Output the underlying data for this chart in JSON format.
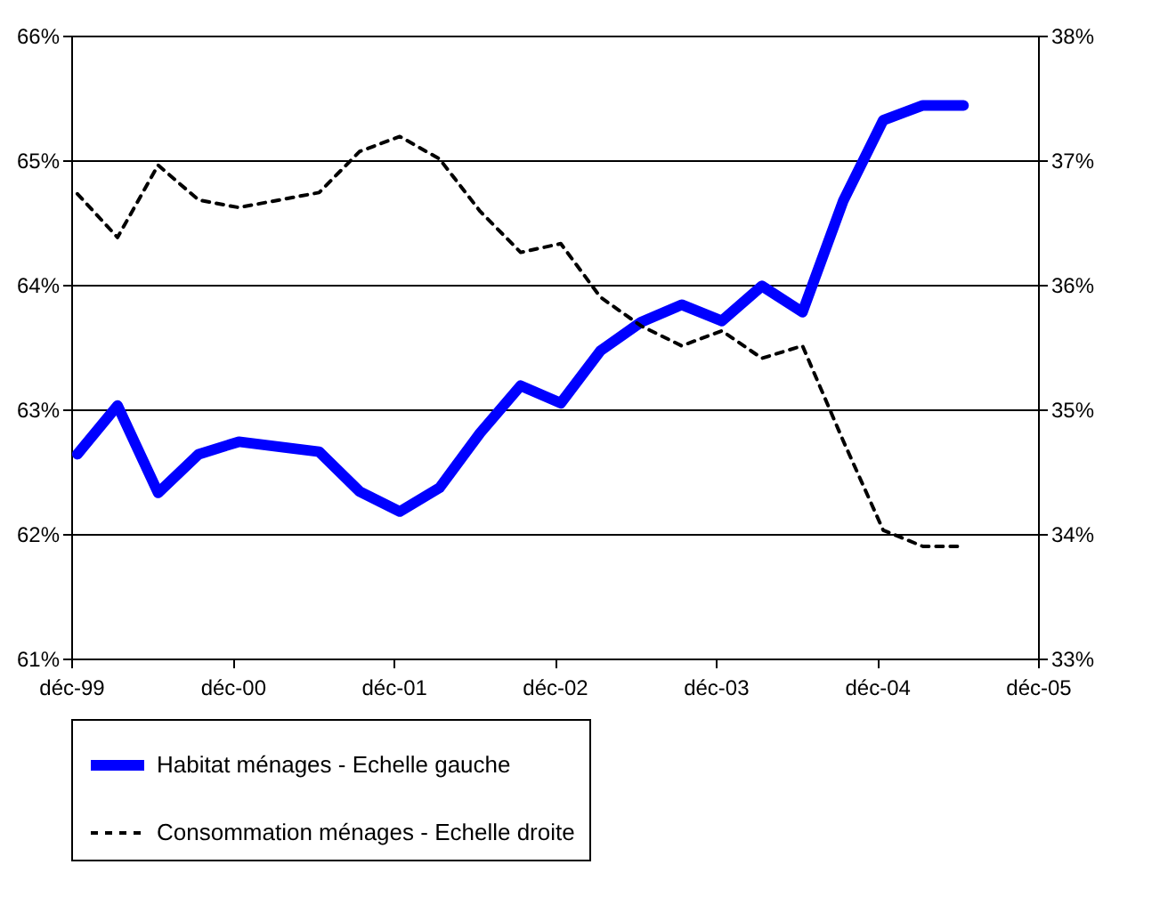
{
  "chart_data": {
    "type": "line",
    "x": [
      "1999-12-15",
      "2000-03-15",
      "2000-06-15",
      "2000-09-15",
      "2000-12-15",
      "2001-06-15",
      "2001-09-15",
      "2001-12-15",
      "2002-03-15",
      "2002-06-15",
      "2002-09-15",
      "2002-12-15",
      "2003-03-15",
      "2003-06-15",
      "2003-09-15",
      "2003-12-15",
      "2004-03-15",
      "2004-06-15",
      "2004-09-15",
      "2004-12-15",
      "2005-03-15",
      "2005-06-15"
    ],
    "series": [
      {
        "name": "Habitat ménages - Echelle gauche",
        "color": "#0000ff",
        "line_style": "solid",
        "values": [
          62.64,
          63.03,
          62.33,
          62.64,
          62.74,
          62.66,
          62.34,
          62.18,
          62.37,
          62.81,
          63.19,
          63.05,
          63.47,
          63.7,
          63.84,
          63.71,
          63.99,
          63.78,
          64.67,
          65.32,
          65.44,
          65.44
        ]
      },
      {
        "name": "Consommation ménages - Echelle droite",
        "color": "#000000",
        "line_style": "dashed",
        "axis": "y2",
        "values": [
          36.73,
          36.38,
          36.96,
          36.68,
          36.62,
          36.74,
          37.07,
          37.19,
          37.01,
          36.59,
          36.26,
          36.33,
          35.9,
          35.67,
          35.51,
          35.63,
          35.41,
          35.51,
          34.75,
          34.03,
          33.9,
          33.9
        ]
      }
    ],
    "xlim": [
      "1999-12-01",
      "2005-12-01"
    ],
    "xticks": [
      {
        "value": "1999-12-01",
        "label": "déc-99"
      },
      {
        "value": "2000-12-01",
        "label": "déc-00"
      },
      {
        "value": "2001-12-01",
        "label": "déc-01"
      },
      {
        "value": "2002-12-01",
        "label": "déc-02"
      },
      {
        "value": "2003-12-01",
        "label": "déc-03"
      },
      {
        "value": "2004-12-01",
        "label": "déc-04"
      },
      {
        "value": "2005-12-01",
        "label": "déc-05"
      }
    ],
    "ylim": [
      61,
      66
    ],
    "yticks": [
      {
        "value": 61,
        "label": "61%"
      },
      {
        "value": 62,
        "label": "62%"
      },
      {
        "value": 63,
        "label": "63%"
      },
      {
        "value": 64,
        "label": "64%"
      },
      {
        "value": 65,
        "label": "65%"
      },
      {
        "value": 66,
        "label": "66%"
      }
    ],
    "y2lim": [
      33,
      38
    ],
    "y2ticks": [
      {
        "value": 33,
        "label": "33%"
      },
      {
        "value": 34,
        "label": "34%"
      },
      {
        "value": 35,
        "label": "35%"
      },
      {
        "value": 36,
        "label": "36%"
      },
      {
        "value": 37,
        "label": "37%"
      },
      {
        "value": 38,
        "label": "38%"
      }
    ],
    "grid": "y",
    "legend": "bottom",
    "marker": "none"
  }
}
